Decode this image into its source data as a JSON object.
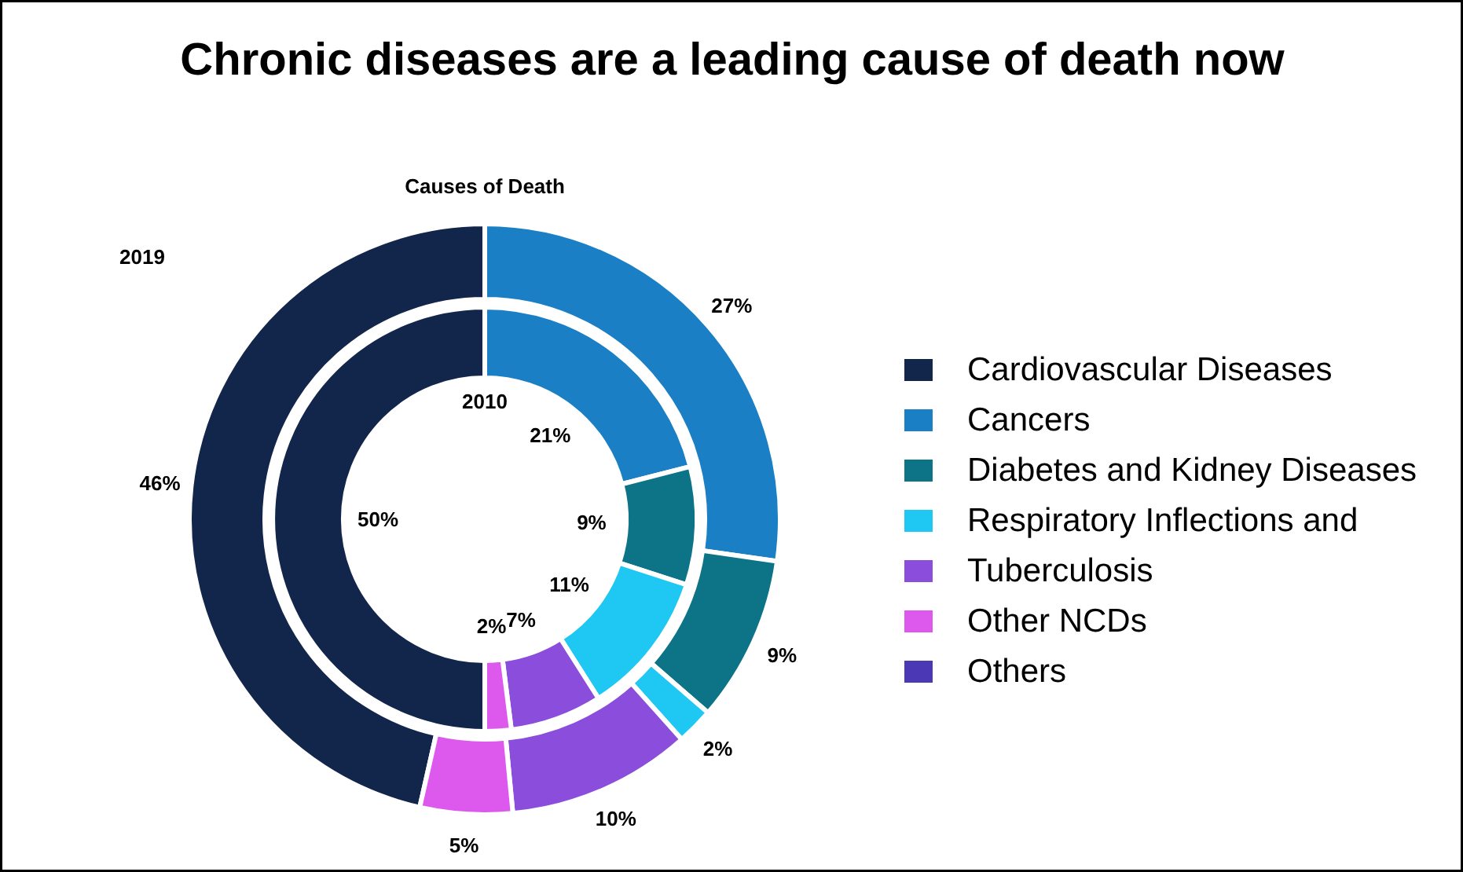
{
  "chart_data": {
    "type": "donut",
    "title": "Chronic diseases are a leading cause of death now",
    "subtitle": "Causes of Death",
    "categories": [
      "Cardiovascular Diseases",
      "Cancers",
      "Diabetes and Kidney Diseases",
      "Respiratory Inflections and",
      "Tuberculosis",
      "Other NCDs",
      "Others"
    ],
    "colors": [
      "#12254a",
      "#1a7fc4",
      "#0d7487",
      "#1ec8f2",
      "#8a4ddc",
      "#dd58ec",
      "#4a38b4"
    ],
    "series": [
      {
        "name": "2019",
        "values": [
          46,
          27,
          9,
          2,
          10,
          5,
          null
        ],
        "value_labels": [
          "46%",
          "27%",
          "9%",
          "2%",
          "10%",
          "5%",
          null
        ]
      },
      {
        "name": "2010",
        "values": [
          50,
          21,
          9,
          11,
          7,
          2,
          null
        ],
        "value_labels": [
          "50%",
          "21%",
          "9%",
          "11%",
          "7%",
          "2%",
          null
        ]
      }
    ],
    "legend": "right"
  }
}
